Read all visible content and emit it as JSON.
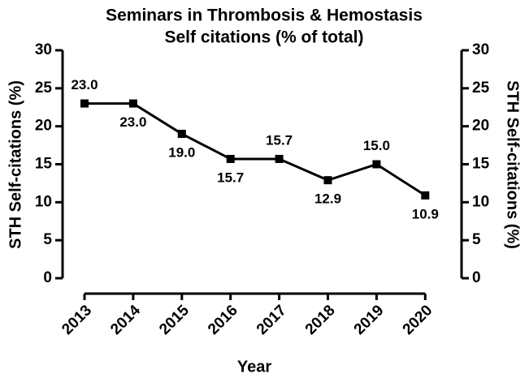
{
  "chart_data": {
    "type": "line",
    "title": [
      "Seminars in Thrombosis & Hemostasis",
      "Self citations (% of total)"
    ],
    "x_label": "Year",
    "y_label": "STH Self-citations (%)",
    "y2_label": "STH Self-citations (%)",
    "categories": [
      "2013",
      "2014",
      "2015",
      "2016",
      "2017",
      "2018",
      "2019",
      "2020"
    ],
    "series": [
      {
        "name": "STH Self-citations (%)",
        "color": "#000000",
        "values": [
          23.0,
          23.0,
          19.0,
          15.7,
          15.7,
          12.9,
          15.0,
          10.9
        ],
        "value_labels": [
          "23.0",
          "23.0",
          "19.0",
          "15.7",
          "15.7",
          "12.9",
          "15.0",
          "10.9"
        ]
      }
    ],
    "ylim": [
      0,
      30
    ],
    "yticks": [
      0,
      5,
      10,
      15,
      20,
      25,
      30
    ],
    "y2lim": [
      0,
      30
    ],
    "y2ticks": [
      0,
      5,
      10,
      15,
      20,
      25,
      30
    ],
    "grid": false
  }
}
